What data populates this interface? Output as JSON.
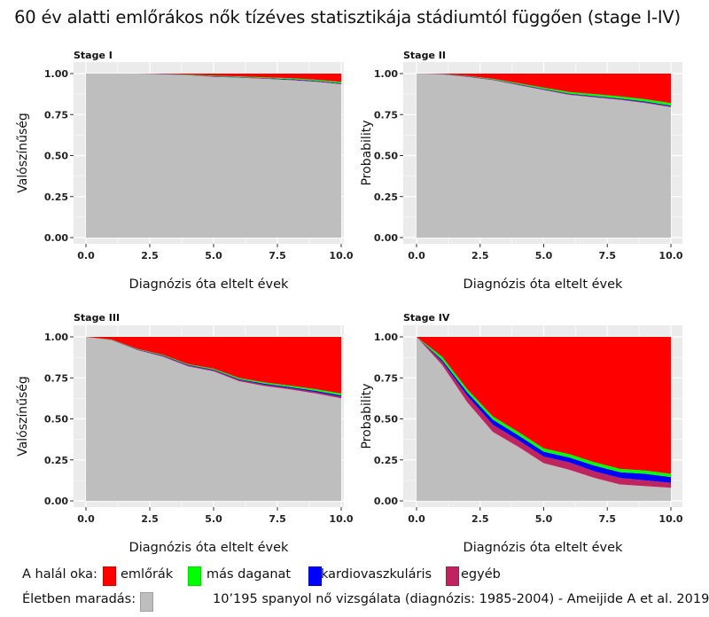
{
  "title": "60 év alatti emlőrákos nők tízéves statisztikája stádiumtól függően (stage I-IV)",
  "legend": {
    "cause_label": "A halál oka:",
    "survival_label": "Életben maradás:",
    "items": [
      {
        "label": "emlőrák",
        "color": "#ff0000"
      },
      {
        "label": "más daganat",
        "color": "#00ff00"
      },
      {
        "label": "kardiovaszkuláris",
        "color": "#0000ff"
      },
      {
        "label": "egyéb",
        "color": "#c0245e"
      }
    ],
    "survival_color": "#bebebe",
    "source": "10’195 spanyol nő vizsgálata (diagnózis: 1985-2004) - Ameijide A et al. 2019"
  },
  "chart_data": [
    {
      "type": "area",
      "stacked": true,
      "title": "Stage I",
      "xlabel": "Diagnózis óta eltelt évek",
      "ylabel": "Valószínűség",
      "xlim": [
        0,
        10
      ],
      "ylim": [
        0,
        1
      ],
      "xticks": [
        "0.0",
        "2.5",
        "5.0",
        "7.5",
        "10.0"
      ],
      "yticks": [
        "0.00",
        "0.25",
        "0.50",
        "0.75",
        "1.00"
      ],
      "x": [
        0,
        1,
        2,
        3,
        4,
        5,
        6,
        7,
        8,
        9,
        10
      ],
      "series": [
        {
          "name": "Életben maradás",
          "values": [
            1,
            1,
            1,
            0.995,
            0.99,
            0.98,
            0.975,
            0.968,
            0.96,
            0.95,
            0.935
          ]
        },
        {
          "name": "egyéb",
          "values": [
            0,
            0,
            0,
            0.001,
            0.001,
            0.002,
            0.002,
            0.002,
            0.003,
            0.003,
            0.003
          ]
        },
        {
          "name": "kardiovaszkuláris",
          "values": [
            0,
            0,
            0,
            0.001,
            0.001,
            0.002,
            0.002,
            0.002,
            0.003,
            0.003,
            0.003
          ]
        },
        {
          "name": "más daganat",
          "values": [
            0,
            0,
            0,
            0.001,
            0.002,
            0.003,
            0.004,
            0.005,
            0.006,
            0.007,
            0.008
          ]
        },
        {
          "name": "emlőrák",
          "values": [
            0,
            0,
            0,
            0.002,
            0.006,
            0.013,
            0.017,
            0.023,
            0.028,
            0.037,
            0.051
          ]
        }
      ]
    },
    {
      "type": "area",
      "stacked": true,
      "title": "Stage II",
      "xlabel": "Diagnózis óta eltelt évek",
      "ylabel": "Probability",
      "xlim": [
        0,
        10
      ],
      "ylim": [
        0,
        1
      ],
      "xticks": [
        "0.0",
        "2.5",
        "5.0",
        "7.5",
        "10.0"
      ],
      "yticks": [
        "0.00",
        "0.25",
        "0.50",
        "0.75",
        "1.00"
      ],
      "x": [
        0,
        1,
        2,
        3,
        4,
        5,
        6,
        7,
        8,
        9,
        10
      ],
      "series": [
        {
          "name": "Életben maradás",
          "values": [
            1,
            0.995,
            0.98,
            0.96,
            0.93,
            0.9,
            0.87,
            0.855,
            0.84,
            0.82,
            0.795
          ]
        },
        {
          "name": "egyéb",
          "values": [
            0,
            0.001,
            0.002,
            0.002,
            0.003,
            0.003,
            0.004,
            0.004,
            0.004,
            0.005,
            0.005
          ]
        },
        {
          "name": "kardiovaszkuláris",
          "values": [
            0,
            0.001,
            0.002,
            0.002,
            0.003,
            0.003,
            0.004,
            0.004,
            0.004,
            0.005,
            0.005
          ]
        },
        {
          "name": "más daganat",
          "values": [
            0,
            0.001,
            0.002,
            0.004,
            0.006,
            0.008,
            0.01,
            0.012,
            0.013,
            0.014,
            0.015
          ]
        },
        {
          "name": "emlőrák",
          "values": [
            0,
            0.002,
            0.014,
            0.032,
            0.058,
            0.086,
            0.112,
            0.125,
            0.139,
            0.156,
            0.18
          ]
        }
      ]
    },
    {
      "type": "area",
      "stacked": true,
      "title": "Stage III",
      "xlabel": "Diagnózis óta eltelt évek",
      "ylabel": "Valószínűség",
      "xlim": [
        0,
        10
      ],
      "ylim": [
        0,
        1
      ],
      "xticks": [
        "0.0",
        "2.5",
        "5.0",
        "7.5",
        "10.0"
      ],
      "yticks": [
        "0.00",
        "0.25",
        "0.50",
        "0.75",
        "1.00"
      ],
      "x": [
        0,
        1,
        2,
        3,
        4,
        5,
        6,
        7,
        8,
        9,
        10
      ],
      "series": [
        {
          "name": "Életben maradás",
          "values": [
            1,
            0.98,
            0.92,
            0.88,
            0.82,
            0.79,
            0.73,
            0.7,
            0.68,
            0.655,
            0.625
          ]
        },
        {
          "name": "egyéb",
          "values": [
            0,
            0.001,
            0.003,
            0.004,
            0.005,
            0.006,
            0.007,
            0.008,
            0.008,
            0.009,
            0.01
          ]
        },
        {
          "name": "kardiovaszkuláris",
          "values": [
            0,
            0.001,
            0.002,
            0.003,
            0.004,
            0.004,
            0.005,
            0.006,
            0.006,
            0.007,
            0.008
          ]
        },
        {
          "name": "más daganat",
          "values": [
            0,
            0.002,
            0.003,
            0.004,
            0.005,
            0.006,
            0.007,
            0.008,
            0.009,
            0.01,
            0.012
          ]
        },
        {
          "name": "emlőrák",
          "values": [
            0,
            0.016,
            0.072,
            0.109,
            0.166,
            0.194,
            0.251,
            0.278,
            0.297,
            0.319,
            0.345
          ]
        }
      ]
    },
    {
      "type": "area",
      "stacked": true,
      "title": "Stage IV",
      "xlabel": "Diagnózis óta eltelt évek",
      "ylabel": "Probability",
      "xlim": [
        0,
        10
      ],
      "ylim": [
        0,
        1
      ],
      "xticks": [
        "0.0",
        "2.5",
        "5.0",
        "7.5",
        "10.0"
      ],
      "yticks": [
        "0.00",
        "0.25",
        "0.50",
        "0.75",
        "1.00"
      ],
      "x": [
        0,
        1,
        2,
        3,
        4,
        5,
        6,
        7,
        8,
        9,
        10
      ],
      "series": [
        {
          "name": "Életben maradás",
          "values": [
            1,
            0.83,
            0.6,
            0.42,
            0.33,
            0.23,
            0.19,
            0.14,
            0.1,
            0.09,
            0.08
          ]
        },
        {
          "name": "egyéb",
          "values": [
            0,
            0.02,
            0.04,
            0.045,
            0.04,
            0.04,
            0.045,
            0.04,
            0.04,
            0.035,
            0.03
          ]
        },
        {
          "name": "kardiovaszkuláris",
          "values": [
            0,
            0.01,
            0.02,
            0.03,
            0.03,
            0.03,
            0.03,
            0.035,
            0.035,
            0.04,
            0.035
          ]
        },
        {
          "name": "más daganat",
          "values": [
            0,
            0.02,
            0.02,
            0.02,
            0.02,
            0.02,
            0.02,
            0.02,
            0.02,
            0.02,
            0.02
          ]
        },
        {
          "name": "emlőrák",
          "values": [
            0,
            0.12,
            0.32,
            0.485,
            0.58,
            0.68,
            0.715,
            0.765,
            0.805,
            0.815,
            0.835
          ]
        }
      ]
    }
  ]
}
